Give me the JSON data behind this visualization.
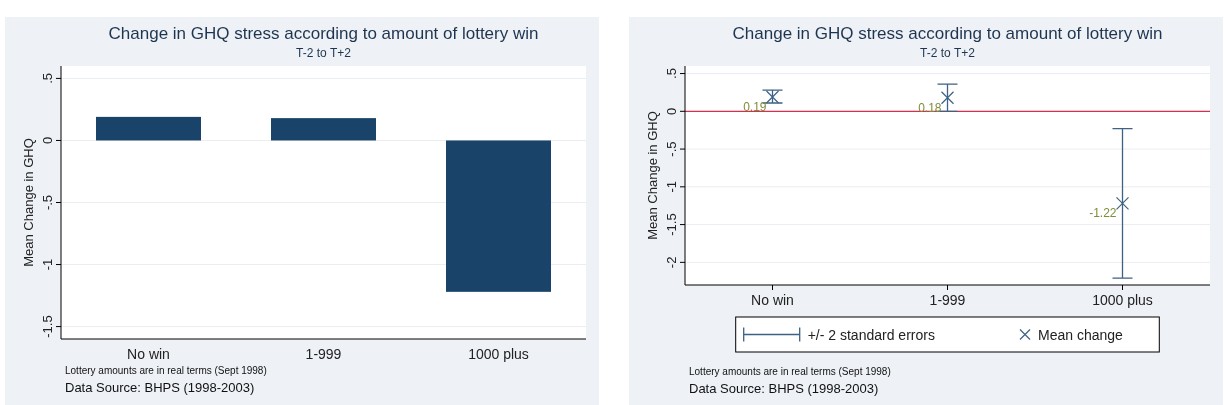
{
  "chart_data": [
    {
      "type": "bar",
      "title": "Change in GHQ stress according to amount of lottery win",
      "subtitle": "T-2 to T+2",
      "ylabel": "Mean Change in GHQ",
      "categories": [
        "No win",
        "1-999",
        "1000 plus"
      ],
      "values": [
        0.19,
        0.18,
        -1.22
      ],
      "color": "#1a4369",
      "ylim": [
        -1.6,
        0.6
      ],
      "yticks": [
        {
          "value": 0.5,
          "label": ".5"
        },
        0,
        {
          "value": -0.5,
          "label": "-.5"
        },
        -1,
        -1.5
      ],
      "grid": "y",
      "annotations": [
        "Lottery amounts are in real terms (Sept 1998)",
        "Data Source: BHPS (1998-2003)"
      ]
    },
    {
      "type": "scatter",
      "title": "Change in GHQ stress according to amount of lottery win",
      "subtitle": "T-2 to T+2",
      "ylabel": "Mean Change in GHQ",
      "categories": [
        "No win",
        "1-999",
        "1000 plus"
      ],
      "series": [
        {
          "name": "Mean change",
          "color": "#3d6283",
          "marker": "cross",
          "values": [
            0.19,
            0.18,
            -1.22
          ],
          "errors": [
            [
              0.11,
              0.28
            ],
            [
              0.0,
              0.36
            ],
            [
              -2.21,
              -0.23
            ]
          ],
          "value_labels": [
            "0.19",
            "0.18",
            "-1.22"
          ]
        }
      ],
      "legend_title": "+/- 2 standard errors",
      "ylim": [
        -2.3,
        0.6
      ],
      "yticks": [
        {
          "value": 0.5,
          "label": ".5"
        },
        0,
        {
          "value": -0.5,
          "label": "-.5"
        },
        -1,
        {
          "value": -1.5,
          "label": "-1.5"
        },
        -2
      ],
      "grid": "y",
      "legend": "bottom",
      "ref_lines": [
        {
          "axis": "y",
          "value": 0,
          "color": "#d6304e"
        }
      ],
      "annotations": [
        "Lottery amounts are in real terms (Sept 1998)",
        "Data Source: BHPS (1998-2003)"
      ]
    }
  ]
}
